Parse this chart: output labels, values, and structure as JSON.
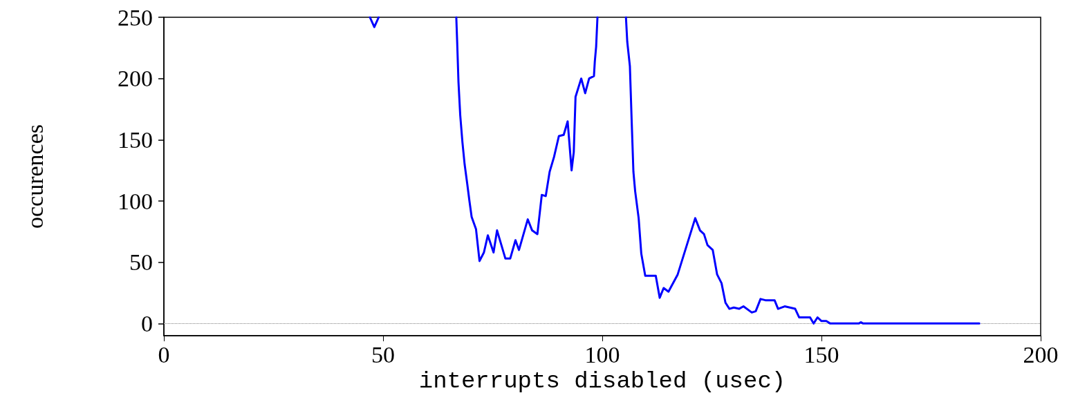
{
  "chart_data": {
    "type": "line",
    "xlabel": "interrupts disabled (usec)",
    "ylabel": "occurences",
    "xlim": [
      0,
      200
    ],
    "xticks": [
      0,
      50,
      100,
      150,
      200
    ],
    "ylim": [
      -10,
      250
    ],
    "yticks": [
      0,
      50,
      100,
      150,
      200,
      250
    ],
    "grid": false,
    "marker": "none",
    "line_style": "solid",
    "ref_lines": [
      {
        "axis": "y",
        "value": 0,
        "label": null,
        "color": "#808080",
        "line_style": "dotted"
      }
    ],
    "series": [
      {
        "color": "#0000ff",
        "x": [
          47,
          48,
          49,
          50,
          66.7,
          66.9,
          67.2,
          67.6,
          68.1,
          68.6,
          69.2,
          69.7,
          70.2,
          71.2,
          72,
          73,
          73.9,
          75.2,
          76,
          77.9,
          79,
          80.2,
          81,
          83,
          84,
          85.2,
          86.2,
          87.1,
          88,
          89,
          90.1,
          91.2,
          92.1,
          93,
          93.5,
          93.9,
          95.2,
          96.1,
          97,
          98.1,
          98.3,
          98.6,
          98.9,
          102,
          105.4,
          105.7,
          106.3,
          106.5,
          106.7,
          106.9,
          107.1,
          107.5,
          108.3,
          108.9,
          109.8,
          112.2,
          113.1,
          114,
          115.1,
          117.2,
          121.2,
          122.3,
          123.2,
          124,
          125.2,
          126.2,
          127.2,
          128.1,
          129,
          130,
          131.2,
          132.2,
          134.1,
          135,
          136.1,
          137.2,
          139.3,
          140.1,
          141.6,
          144,
          144.9,
          147.4,
          148.2,
          149.1,
          150,
          151.1,
          152,
          158.5,
          159,
          159.5,
          186
        ],
        "values": [
          250,
          242,
          250,
          null,
          250,
          230,
          197,
          170,
          148,
          130,
          114,
          100,
          87,
          77,
          51,
          58,
          72,
          58,
          76,
          53,
          53,
          68,
          60,
          85,
          76,
          73,
          105,
          104,
          124,
          136,
          153,
          154,
          165,
          125,
          140,
          185,
          200,
          188,
          200,
          202,
          214,
          226,
          250,
          null,
          250,
          230,
          210,
          188,
          166,
          145,
          124,
          108,
          86,
          57,
          39,
          39,
          21,
          29,
          26,
          40,
          86,
          76,
          73,
          64,
          60,
          40,
          33,
          17,
          12,
          13,
          12,
          14,
          9,
          10,
          20,
          19,
          19,
          12,
          14,
          12,
          5,
          5,
          0,
          5,
          2,
          2,
          0,
          0,
          1,
          0,
          0
        ]
      }
    ]
  }
}
